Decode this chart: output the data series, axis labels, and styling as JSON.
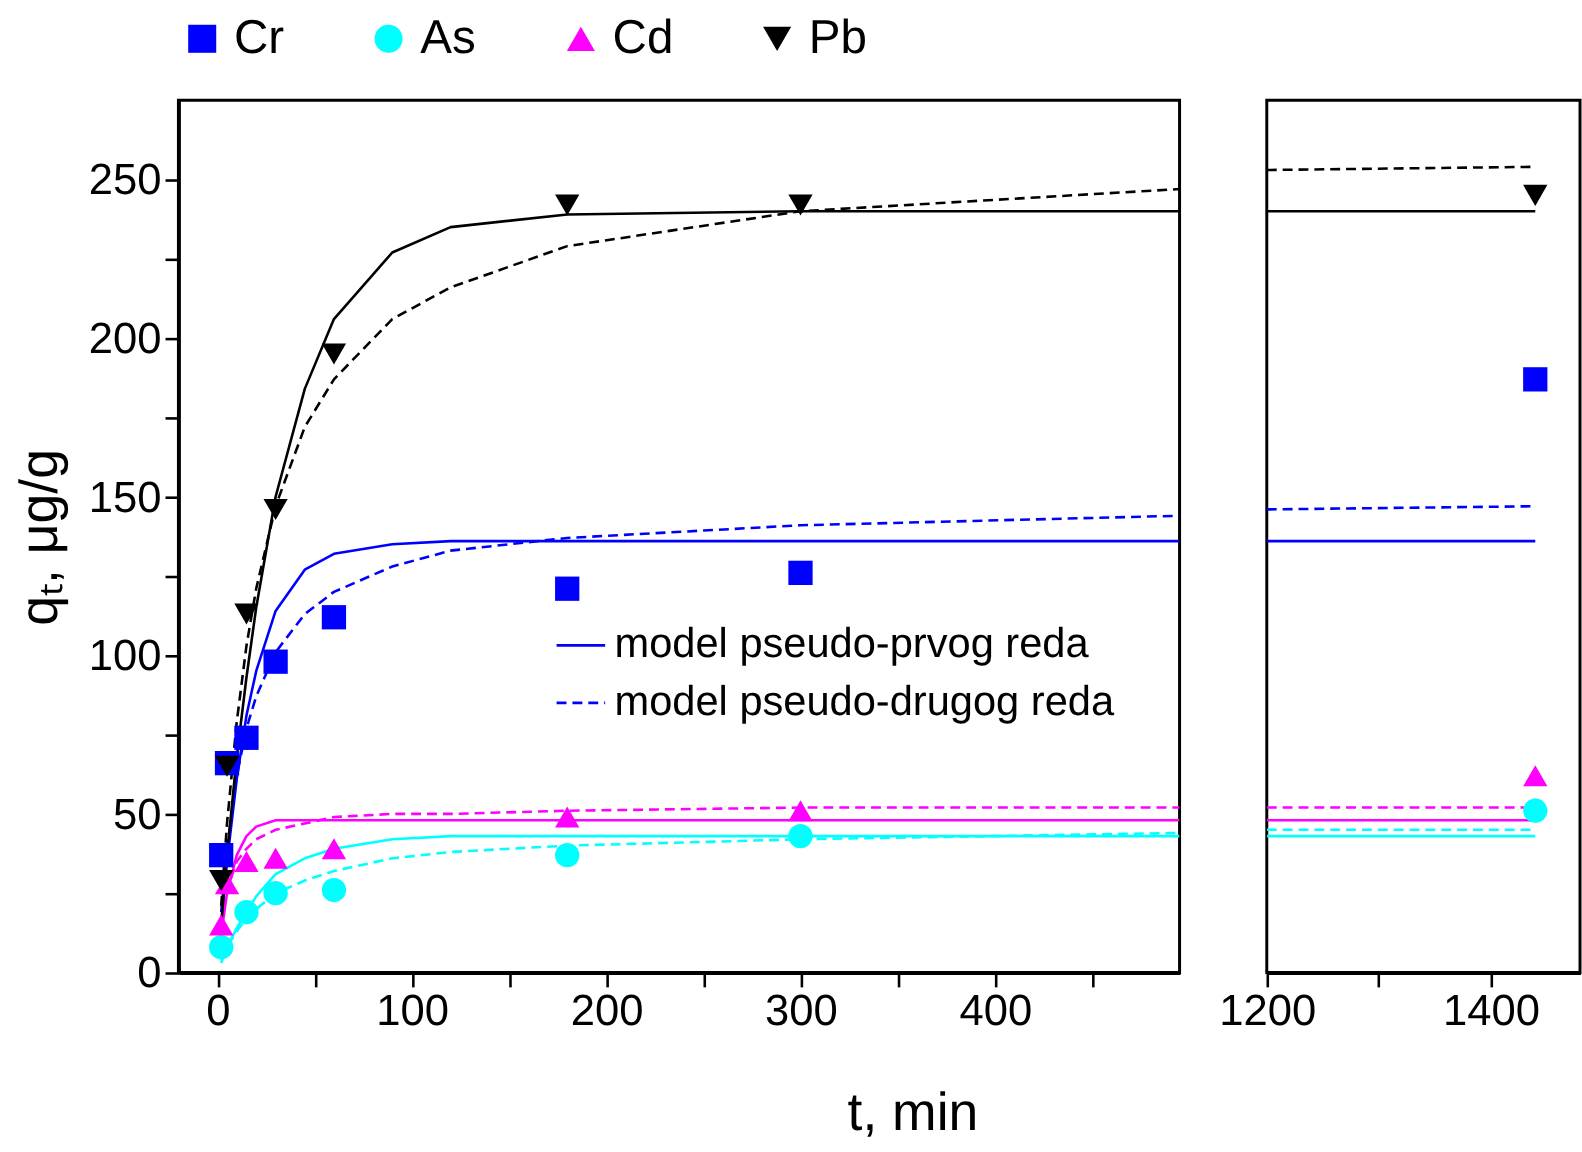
{
  "chart_data": [
    {
      "type": "scatter",
      "xlabel": "t, min",
      "ylabel": "qₜ, μg/g",
      "legend": "top",
      "xlim": [
        -20,
        495
      ],
      "xticks": [
        0,
        {
          "value": 50,
          "label": null
        },
        100,
        {
          "value": 150,
          "label": null
        },
        200,
        {
          "value": 250,
          "label": null
        },
        300,
        {
          "value": 350,
          "label": null
        },
        400,
        {
          "value": 450,
          "label": null
        }
      ],
      "ylim": [
        0,
        275
      ],
      "yticks": [
        0,
        {
          "value": 25,
          "label": null
        },
        50,
        {
          "value": 75,
          "label": null
        },
        100,
        {
          "value": 125,
          "label": null
        },
        150,
        {
          "value": 175,
          "label": null
        },
        200,
        {
          "value": 225,
          "label": null
        },
        250
      ],
      "series": [
        {
          "type": "line",
          "name": "model pseudo-prvog reda",
          "color": "#0000ff",
          "line_style": "solid",
          "marker": "none",
          "x": [
            2,
            5,
            10,
            15,
            20,
            30,
            45,
            60,
            90,
            120,
            180,
            300,
            495
          ],
          "values": [
            15,
            35,
            61,
            81,
            95,
            114,
            127,
            132,
            135,
            136,
            136,
            136,
            136
          ]
        },
        {
          "type": "line",
          "name": "model pseudo-drugog reda",
          "color": "#0000ff",
          "line_style": "dashed",
          "marker": "none",
          "x": [
            2,
            5,
            10,
            15,
            20,
            30,
            45,
            60,
            90,
            120,
            180,
            300,
            495
          ],
          "values": [
            19,
            39,
            62,
            77,
            87,
            101,
            113,
            120,
            128,
            133,
            137,
            141,
            144
          ]
        },
        {
          "type": "line",
          "color": "#00ffff",
          "line_style": "solid",
          "marker": "none",
          "x": [
            2,
            5,
            10,
            15,
            20,
            30,
            45,
            60,
            90,
            120,
            180,
            300,
            495
          ],
          "values": [
            3,
            8,
            14,
            19,
            24,
            31,
            36,
            39,
            42,
            43,
            43,
            43,
            43
          ]
        },
        {
          "type": "line",
          "color": "#00ffff",
          "line_style": "dashed",
          "marker": "none",
          "x": [
            2,
            5,
            10,
            15,
            20,
            30,
            45,
            60,
            90,
            120,
            180,
            300,
            495
          ],
          "values": [
            4,
            8,
            13,
            17,
            20,
            25,
            29,
            32,
            36,
            38,
            40,
            42,
            44
          ]
        },
        {
          "type": "line",
          "color": "#ff00ff",
          "line_style": "solid",
          "marker": "none",
          "x": [
            2,
            5,
            10,
            15,
            20,
            30,
            45,
            60,
            90,
            120,
            180,
            300,
            495
          ],
          "values": [
            12,
            25,
            37,
            43,
            46,
            48,
            48,
            48,
            48,
            48,
            48,
            48,
            48
          ]
        },
        {
          "type": "line",
          "color": "#ff00ff",
          "line_style": "dashed",
          "marker": "none",
          "x": [
            2,
            5,
            10,
            15,
            20,
            30,
            45,
            60,
            90,
            120,
            180,
            300,
            495
          ],
          "values": [
            15,
            26,
            35,
            39,
            42,
            45,
            47,
            49,
            50,
            50,
            51,
            52,
            52
          ]
        },
        {
          "type": "line",
          "color": "#000000",
          "line_style": "solid",
          "marker": "none",
          "x": [
            2,
            5,
            10,
            15,
            20,
            30,
            45,
            60,
            90,
            120,
            180,
            300,
            495
          ],
          "values": [
            15,
            37,
            68,
            93,
            115,
            150,
            184,
            206,
            227,
            235,
            239,
            240,
            240
          ]
        },
        {
          "type": "line",
          "color": "#000000",
          "line_style": "dashed",
          "marker": "none",
          "x": [
            2,
            5,
            10,
            15,
            20,
            30,
            45,
            60,
            90,
            120,
            180,
            300,
            495
          ],
          "values": [
            21,
            47,
            79,
            103,
            121,
            147,
            172,
            187,
            206,
            216,
            229,
            240,
            247
          ]
        },
        {
          "type": "scatter",
          "name": "Cr",
          "color": "#0000ff",
          "marker": "square",
          "x": [
            2,
            5,
            15,
            30,
            60,
            180,
            300
          ],
          "values": [
            37,
            66,
            74,
            98,
            112,
            121,
            126
          ]
        },
        {
          "type": "scatter",
          "name": "As",
          "color": "#00ffff",
          "marker": "circle",
          "x": [
            2,
            15,
            30,
            60,
            180,
            300
          ],
          "values": [
            8,
            19,
            25,
            26,
            37,
            43
          ]
        },
        {
          "type": "scatter",
          "name": "Cd",
          "color": "#ff00ff",
          "marker": "triangle",
          "x": [
            2,
            5,
            15,
            30,
            60,
            180,
            300
          ],
          "values": [
            15,
            28,
            35,
            36,
            39,
            49,
            51
          ]
        },
        {
          "type": "scatter",
          "name": "Pb",
          "color": "#000000",
          "marker": "triangle-down",
          "x": [
            2,
            5,
            15,
            30,
            60,
            180,
            300
          ],
          "values": [
            29,
            65,
            113,
            146,
            195,
            242,
            242
          ]
        }
      ]
    },
    {
      "type": "scatter",
      "tick_labels": "x",
      "xlim": [
        1200,
        1480
      ],
      "xticks": [
        1200,
        {
          "value": 1300,
          "label": null
        },
        1400
      ],
      "ylim": [
        0,
        275
      ],
      "series": [
        {
          "type": "line",
          "color": "#0000ff",
          "line_style": "solid",
          "marker": "none",
          "x": [
            1200,
            1440
          ],
          "values": [
            136,
            136
          ]
        },
        {
          "type": "line",
          "color": "#0000ff",
          "line_style": "dashed",
          "marker": "none",
          "x": [
            1200,
            1440
          ],
          "values": [
            146,
            147
          ]
        },
        {
          "type": "line",
          "color": "#00ffff",
          "line_style": "solid",
          "marker": "none",
          "x": [
            1200,
            1440
          ],
          "values": [
            43,
            43
          ]
        },
        {
          "type": "line",
          "color": "#00ffff",
          "line_style": "dashed",
          "marker": "none",
          "x": [
            1200,
            1440
          ],
          "values": [
            45,
            45
          ]
        },
        {
          "type": "line",
          "color": "#ff00ff",
          "line_style": "solid",
          "marker": "none",
          "x": [
            1200,
            1440
          ],
          "values": [
            48,
            48
          ]
        },
        {
          "type": "line",
          "color": "#ff00ff",
          "line_style": "dashed",
          "marker": "none",
          "x": [
            1200,
            1440
          ],
          "values": [
            52,
            52
          ]
        },
        {
          "type": "line",
          "color": "#000000",
          "line_style": "solid",
          "marker": "none",
          "x": [
            1200,
            1440
          ],
          "values": [
            240,
            240
          ]
        },
        {
          "type": "line",
          "color": "#000000",
          "line_style": "dashed",
          "marker": "none",
          "x": [
            1200,
            1440
          ],
          "values": [
            253,
            254
          ]
        },
        {
          "type": "scatter",
          "color": "#0000ff",
          "marker": "square",
          "x": [
            1440
          ],
          "values": [
            187
          ]
        },
        {
          "type": "scatter",
          "color": "#00ffff",
          "marker": "circle",
          "x": [
            1440
          ],
          "values": [
            51
          ]
        },
        {
          "type": "scatter",
          "color": "#ff00ff",
          "marker": "triangle",
          "x": [
            1440
          ],
          "values": [
            62
          ]
        },
        {
          "type": "scatter",
          "color": "#000000",
          "marker": "triangle-down",
          "x": [
            1440
          ],
          "values": [
            245
          ]
        }
      ]
    }
  ]
}
